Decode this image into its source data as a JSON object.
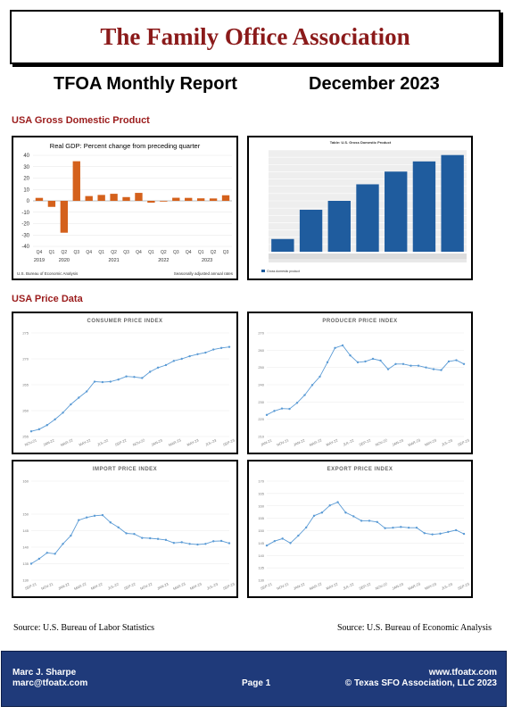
{
  "header": {
    "org_title": "The Family Office Association"
  },
  "report": {
    "title": "TFOA Monthly Report",
    "date": "December 2023"
  },
  "sections": {
    "gdp": "USA Gross Domestic Product",
    "price": "USA Price Data"
  },
  "sources": {
    "left": "Source: U.S. Bureau of Labor Statistics",
    "right": "Source: U.S. Bureau of Economic Analysis"
  },
  "footer": {
    "name": "Marc J. Sharpe",
    "email": "marc@tfoatx.com",
    "page": "Page 1",
    "website": "www.tfoatx.com",
    "copyright": "© Texas SFO Association, LLC 2023"
  },
  "colors": {
    "title": "#8b1a1a",
    "section": "#9b1c1c",
    "gdp_bar": "#d4611c",
    "table_bar": "#1f5c9e",
    "line": "#5b9bd5",
    "footer_bg": "#1f3a7a"
  },
  "chart_data": [
    {
      "type": "bar",
      "title": "Real GDP: Percent change from preceding quarter",
      "categories": [
        "Q4",
        "Q1",
        "Q2",
        "Q3",
        "Q4",
        "Q1",
        "Q2",
        "Q3",
        "Q4",
        "Q1",
        "Q2",
        "Q3",
        "Q4",
        "Q1",
        "Q2",
        "Q3"
      ],
      "year_labels": [
        "2019",
        "2020",
        "2021",
        "2022",
        "2023"
      ],
      "values": [
        2.6,
        -5.3,
        -28.0,
        34.8,
        4.2,
        5.2,
        6.2,
        3.3,
        7.0,
        -1.6,
        -0.6,
        2.7,
        2.6,
        2.2,
        2.1,
        4.9
      ],
      "yticks": [
        40,
        30,
        20,
        10,
        0,
        -10,
        -20,
        -30,
        -40
      ],
      "ylim": [
        -40,
        40
      ],
      "note_left": "U.S. Bureau of Economic Analysis",
      "note_right": "Seasonally adjusted annual rates"
    },
    {
      "type": "bar",
      "title": "Table: U.S. Gross Domestic Product",
      "values": [
        21.0,
        23.3,
        24.0,
        25.3,
        26.3,
        27.1,
        27.6
      ],
      "ylim": [
        20,
        28
      ],
      "legend": [
        "Gross domestic product"
      ]
    },
    {
      "type": "line",
      "title": "CONSUMER PRICE INDEX",
      "yticks": [
        275,
        270,
        265,
        260,
        255
      ],
      "xticks": [
        "NOV-21",
        "JAN-22",
        "MAR-22",
        "MAY-22",
        "JUL-22",
        "SEP-22",
        "NOV-22",
        "JAN-23",
        "MAR-23",
        "MAY-23",
        "JUL-23",
        "SEP-23"
      ],
      "values": [
        256.0,
        256.4,
        257.2,
        258.3,
        259.6,
        261.2,
        262.5,
        263.7,
        265.6,
        265.5,
        265.6,
        266.0,
        266.6,
        266.5,
        266.3,
        267.5,
        268.3,
        268.8,
        269.6,
        270.0,
        270.5,
        270.9,
        271.2,
        271.8,
        272.1,
        272.3
      ]
    },
    {
      "type": "line",
      "title": "PRODUCER PRICE INDEX",
      "yticks": [
        270,
        260,
        250,
        240,
        230,
        220,
        210
      ],
      "xticks": [
        "JAN-21",
        "NOV-21",
        "JAN-22",
        "MAR-22",
        "MAY-22",
        "JUL-22",
        "SEP-22",
        "NOV-22",
        "JAN-23",
        "MAR-23",
        "MAY-23",
        "JUL-23",
        "SEP-23"
      ],
      "values": [
        222.5,
        224.8,
        226.2,
        226.0,
        229.5,
        234.0,
        239.8,
        244.7,
        253.0,
        261.3,
        262.8,
        257.0,
        253.0,
        253.5,
        255.0,
        254.0,
        249.0,
        252.0,
        252.0,
        251.0,
        251.0,
        250.0,
        249.0,
        248.5,
        253.5,
        254.2,
        252.0
      ]
    },
    {
      "type": "line",
      "title": "IMPORT PRICE INDEX",
      "yticks": [
        160,
        150,
        145,
        140,
        135,
        130
      ],
      "xticks": [
        "SEP-21",
        "NOV-21",
        "JAN-22",
        "MAR-22",
        "MAY-22",
        "JUL-22",
        "SEP-22",
        "NOV-22",
        "JAN-23",
        "MAR-23",
        "MAY-23",
        "JUL-23",
        "SEP-23"
      ],
      "values": [
        135.0,
        136.5,
        138.3,
        138.0,
        141.0,
        143.5,
        148.2,
        149.0,
        149.5,
        149.7,
        147.5,
        146.0,
        144.2,
        144.0,
        142.8,
        142.7,
        142.5,
        142.2,
        141.3,
        141.5,
        141.0,
        140.8,
        141.0,
        141.8,
        141.9,
        141.2
      ]
    },
    {
      "type": "line",
      "title": "EXPORT PRICE INDEX",
      "yticks": [
        170,
        165,
        160,
        155,
        150,
        145,
        140,
        135,
        130
      ],
      "xticks": [
        "SEP-21",
        "NOV-21",
        "JAN-22",
        "MAR-22",
        "MAY-22",
        "JUL-22",
        "SEP-22",
        "NOV-22",
        "JAN-23",
        "MAR-23",
        "MAY-23",
        "JUL-23",
        "SEP-23"
      ],
      "values": [
        144.0,
        145.8,
        146.8,
        145.0,
        148.0,
        151.3,
        156.0,
        157.3,
        160.2,
        161.5,
        157.3,
        155.8,
        154.0,
        154.0,
        153.5,
        151.0,
        151.2,
        151.5,
        151.2,
        151.2,
        149.0,
        148.5,
        148.8,
        149.5,
        150.2,
        148.7
      ]
    }
  ]
}
